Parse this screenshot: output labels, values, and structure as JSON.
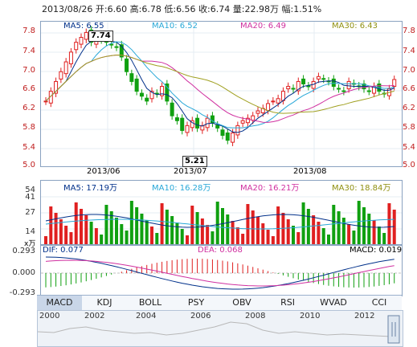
{
  "header": {
    "date": "2013/08/26",
    "open_label": "开:",
    "open": "6.60",
    "high_label": "高:",
    "high": "6.78",
    "low_label": "低:",
    "low": "6.56",
    "close_label": "收:",
    "close": "6.74",
    "volume_label": "量:",
    "volume": "22.98万",
    "change_label": "幅:",
    "change": "1.51%"
  },
  "main": {
    "ma5": "MA5: 6.55",
    "ma10": "MA10: 6.52",
    "ma20": "MA20: 6.49",
    "ma30": "MA30: 6.43",
    "y_ticks": [
      "7.8",
      "7.4",
      "7.0",
      "6.6",
      "6.2",
      "5.8",
      "5.4",
      "5.0"
    ],
    "x_ticks": [
      "2013/06",
      "2013/07",
      "2013/08"
    ],
    "high_callout": "7.74",
    "low_callout": "5.21"
  },
  "volume": {
    "ma5": "MA5: 17.19万",
    "ma10": "MA10: 16.28万",
    "ma20": "MA20: 16.21万",
    "ma30": "MA30: 18.84万",
    "y_ticks": [
      "54",
      "41",
      "27",
      "14"
    ],
    "unit": "x万"
  },
  "macd": {
    "dif": "DIF: 0.077",
    "dea": "DEA: 0.068",
    "macd": "MACD: 0.019",
    "y_ticks": [
      "0.293",
      "0.000",
      "-0.293"
    ]
  },
  "tabs": [
    "MACD",
    "KDJ",
    "BOLL",
    "PSY",
    "OBV",
    "RSI",
    "WVAD",
    "CCI"
  ],
  "active_tab": "MACD",
  "timeline": {
    "years": [
      "2000",
      "2002",
      "2004",
      "2006",
      "2008",
      "2010",
      "2012"
    ]
  },
  "colors": {
    "up": "#e02020",
    "down": "#10a010",
    "ma5": "#00308a",
    "ma10": "#28a8d8",
    "ma20": "#d030a0",
    "ma30": "#a0a020"
  }
}
